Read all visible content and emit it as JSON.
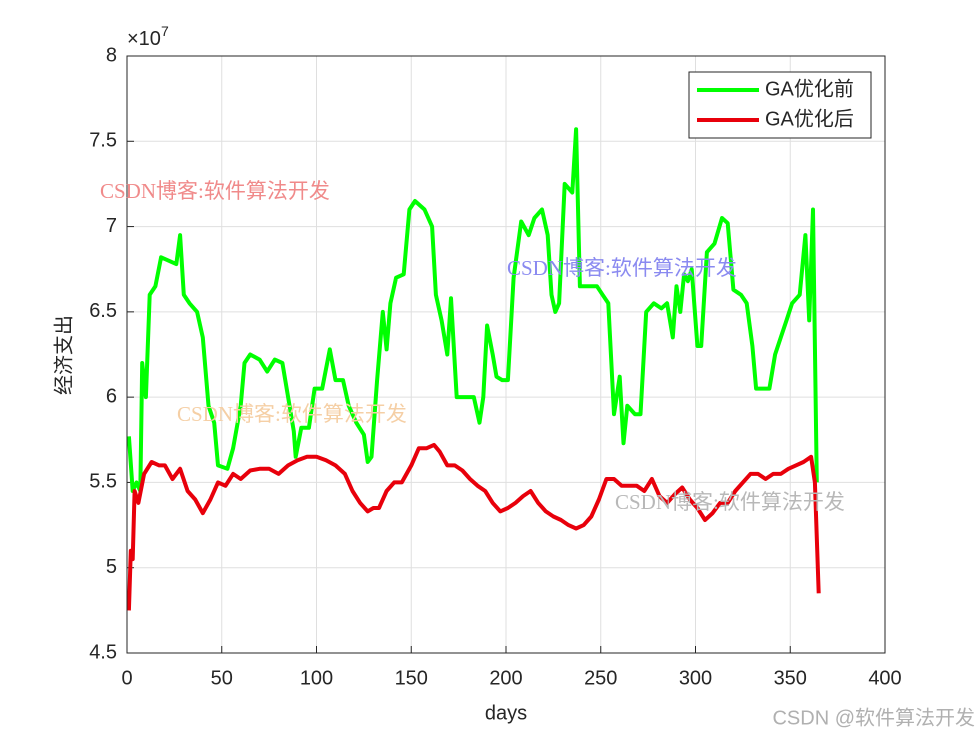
{
  "chart_data": {
    "type": "line",
    "exponent_base": "×10",
    "exponent": "7",
    "x_label": "days",
    "y_label": "经济支出",
    "xlim": [
      0,
      400
    ],
    "xticks": [
      0,
      50,
      100,
      150,
      200,
      250,
      300,
      350,
      400
    ],
    "ylim": [
      4.5,
      8
    ],
    "yticks": [
      4.5,
      5,
      5.5,
      6,
      6.5,
      7,
      7.5,
      8
    ],
    "grid": true,
    "legend": "northeast",
    "series": [
      {
        "name": "GA优化前",
        "color": "#00ff00",
        "x": [
          1,
          3,
          5,
          7,
          8,
          10,
          12,
          15,
          18,
          22,
          26,
          28,
          30,
          33,
          37,
          40,
          43,
          46,
          48,
          53,
          56,
          60,
          62,
          65,
          70,
          74,
          78,
          82,
          85,
          88,
          89,
          92,
          96,
          99,
          103,
          107,
          110,
          114,
          117,
          121,
          125,
          127,
          129,
          132,
          135,
          137,
          139,
          142,
          146,
          149,
          152,
          157,
          161,
          163,
          166,
          169,
          171,
          174,
          178,
          183,
          186,
          188,
          190,
          193,
          195,
          198,
          201,
          204,
          208,
          212,
          215,
          219,
          222,
          224,
          226,
          228,
          231,
          235,
          237,
          239,
          243,
          248,
          251,
          254,
          257,
          260,
          262,
          264,
          268,
          271,
          274,
          278,
          282,
          285,
          288,
          290,
          292,
          294,
          296,
          298,
          301,
          303,
          306,
          310,
          314,
          317,
          320,
          324,
          327,
          330,
          332,
          335,
          339,
          342,
          345,
          348,
          351,
          355,
          358,
          360,
          362,
          364
        ],
        "values": [
          5.77,
          5.45,
          5.5,
          5.45,
          6.2,
          6.0,
          6.6,
          6.65,
          6.82,
          6.8,
          6.78,
          6.95,
          6.6,
          6.55,
          6.5,
          6.35,
          5.95,
          5.85,
          5.6,
          5.58,
          5.7,
          5.95,
          6.2,
          6.25,
          6.22,
          6.15,
          6.22,
          6.2,
          6.0,
          5.8,
          5.65,
          5.82,
          5.82,
          6.05,
          6.05,
          6.28,
          6.1,
          6.1,
          5.95,
          5.85,
          5.78,
          5.62,
          5.65,
          6.1,
          6.5,
          6.28,
          6.55,
          6.7,
          6.72,
          7.1,
          7.15,
          7.1,
          7.0,
          6.6,
          6.45,
          6.25,
          6.58,
          6.0,
          6.0,
          6.0,
          5.85,
          6.0,
          6.42,
          6.25,
          6.12,
          6.1,
          6.1,
          6.7,
          7.03,
          6.95,
          7.05,
          7.1,
          6.95,
          6.6,
          6.5,
          6.55,
          7.25,
          7.2,
          7.57,
          6.65,
          6.65,
          6.65,
          6.6,
          6.55,
          5.9,
          6.12,
          5.73,
          5.95,
          5.9,
          5.9,
          6.5,
          6.55,
          6.52,
          6.55,
          6.35,
          6.65,
          6.5,
          6.72,
          6.68,
          6.75,
          6.3,
          6.3,
          6.85,
          6.9,
          7.05,
          7.02,
          6.63,
          6.6,
          6.55,
          6.3,
          6.05,
          6.05,
          6.05,
          6.25,
          6.35,
          6.45,
          6.55,
          6.6,
          6.95,
          6.45,
          7.1,
          5.5
        ]
      },
      {
        "name": "GA优化后",
        "color": "#e8000b",
        "x": [
          1,
          2,
          3,
          4,
          6,
          9,
          13,
          17,
          20,
          24,
          28,
          32,
          36,
          40,
          44,
          48,
          52,
          56,
          60,
          65,
          70,
          75,
          80,
          85,
          90,
          95,
          100,
          105,
          110,
          115,
          119,
          123,
          127,
          130,
          133,
          137,
          141,
          145,
          150,
          154,
          158,
          162,
          165,
          169,
          173,
          177,
          181,
          185,
          189,
          193,
          197,
          201,
          205,
          209,
          213,
          217,
          221,
          225,
          229,
          233,
          237,
          241,
          245,
          249,
          253,
          257,
          261,
          265,
          269,
          273,
          277,
          281,
          285,
          289,
          293,
          297,
          301,
          305,
          309,
          313,
          317,
          321,
          325,
          329,
          333,
          337,
          341,
          345,
          349,
          353,
          357,
          361,
          363,
          365
        ],
        "values": [
          4.75,
          5.1,
          5.05,
          5.45,
          5.38,
          5.55,
          5.62,
          5.6,
          5.6,
          5.52,
          5.58,
          5.45,
          5.4,
          5.32,
          5.4,
          5.5,
          5.48,
          5.55,
          5.52,
          5.57,
          5.58,
          5.58,
          5.55,
          5.6,
          5.63,
          5.65,
          5.65,
          5.63,
          5.6,
          5.55,
          5.45,
          5.38,
          5.33,
          5.35,
          5.35,
          5.45,
          5.5,
          5.5,
          5.6,
          5.7,
          5.7,
          5.72,
          5.68,
          5.6,
          5.6,
          5.57,
          5.52,
          5.48,
          5.45,
          5.38,
          5.33,
          5.35,
          5.38,
          5.42,
          5.45,
          5.38,
          5.33,
          5.3,
          5.28,
          5.25,
          5.23,
          5.25,
          5.3,
          5.4,
          5.52,
          5.52,
          5.48,
          5.48,
          5.48,
          5.45,
          5.52,
          5.42,
          5.38,
          5.43,
          5.47,
          5.4,
          5.35,
          5.28,
          5.32,
          5.38,
          5.38,
          5.45,
          5.5,
          5.55,
          5.55,
          5.52,
          5.55,
          5.55,
          5.58,
          5.6,
          5.62,
          5.65,
          5.5,
          4.85
        ]
      }
    ],
    "watermarks": [
      {
        "text": "CSDN博客:软件算法开发",
        "color": "#f08a8a"
      },
      {
        "text": "CSDN博客:软件算法开发",
        "color": "#8a8af0"
      },
      {
        "text": "CSDN博客:软件算法开发",
        "color": "#f5cfa5"
      },
      {
        "text": "CSDN博客:软件算法开发",
        "color": "#b8b8b8"
      },
      {
        "text": "CSDN @软件算法开发",
        "color": "#b0b0b0"
      }
    ]
  }
}
